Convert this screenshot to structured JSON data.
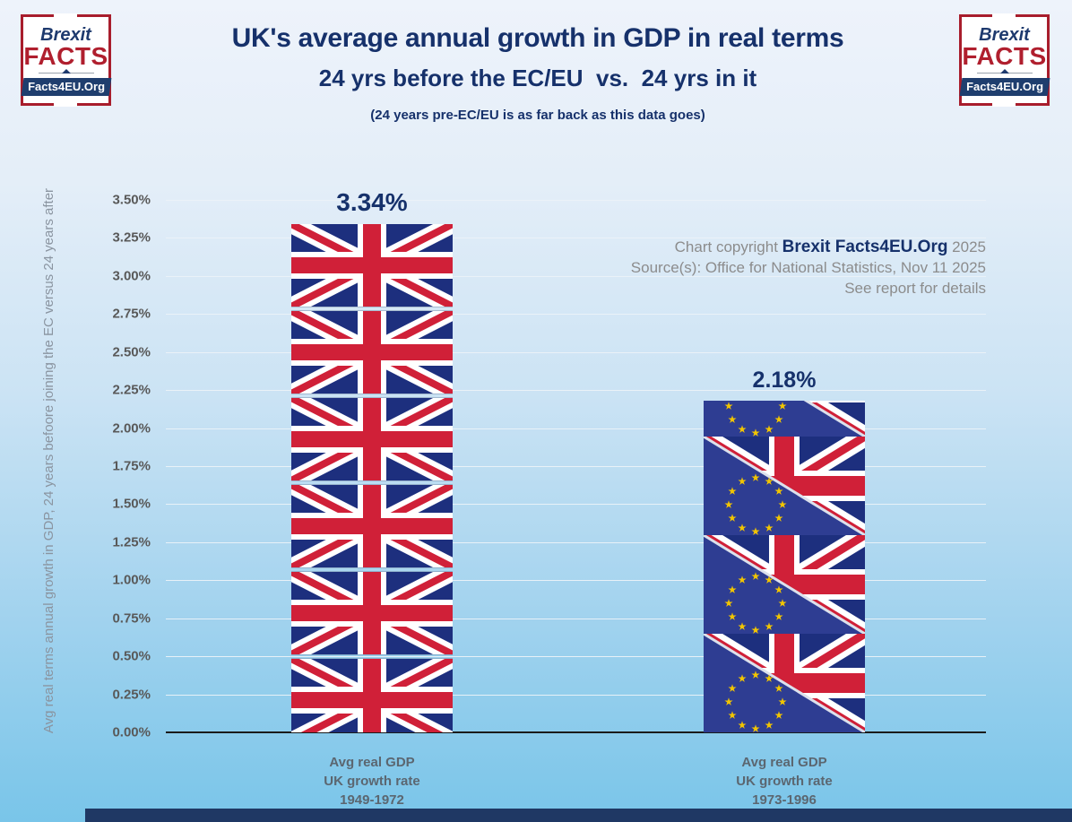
{
  "logo": {
    "line1": "Brexit",
    "line2": "FACTS",
    "banner": "Facts4EU.Org"
  },
  "header": {
    "title": "UK's average annual growth in GDP in real terms",
    "subtitle": "24 yrs before the EC/EU  vs.  24 yrs in it",
    "note": "(24 years pre-EC/EU is as far back as this data goes)"
  },
  "copyright": {
    "prefix": "Chart copyright ",
    "brand": "Brexit Facts4EU.Org",
    "year": " 2025",
    "source": "Source(s): Office for National Statistics, Nov 11 2025",
    "see": "See report for details"
  },
  "axis": {
    "y_title": "Avg real terms annual growth in GDP, 24 years befoore joining the EC versus 24 years after"
  },
  "chart_data": {
    "type": "bar",
    "title": "UK's average annual growth in GDP in real terms",
    "subtitle": "24 yrs before the EC/EU vs. 24 yrs in it",
    "categories": [
      {
        "lines": [
          "Avg real GDP",
          "UK growth rate",
          "1949-1972"
        ]
      },
      {
        "lines": [
          "Avg real GDP",
          "UK growth rate",
          "1973-1996"
        ]
      }
    ],
    "values": [
      3.34,
      2.18
    ],
    "value_labels": [
      "3.34%",
      "2.18%"
    ],
    "bar_fill": [
      "union-jack-flag",
      "eu-uk-split-flag"
    ],
    "ylabel": "Avg real terms annual growth in GDP, 24 years befoore joining the EC versus 24 years after",
    "ylim": [
      0,
      3.5
    ],
    "ytick_step": 0.25,
    "yticks": [
      "3.50%",
      "3.25%",
      "3.00%",
      "2.75%",
      "2.50%",
      "2.25%",
      "2.00%",
      "1.75%",
      "1.50%",
      "1.25%",
      "1.00%",
      "0.75%",
      "0.50%",
      "0.25%",
      "0.00%"
    ],
    "grid": true,
    "legend": "none",
    "colors": {
      "accent_navy": "#16316B",
      "flag_blue": "#1D2F7E",
      "flag_red": "#D02038",
      "eu_blue": "#2E3D92",
      "eu_star_gold": "#F2C500",
      "bg_bottom": "#79C5E9"
    }
  }
}
